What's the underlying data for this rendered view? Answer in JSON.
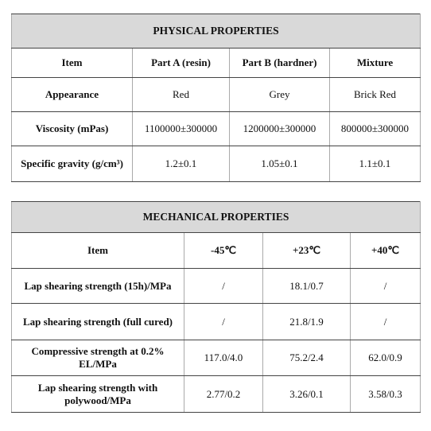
{
  "physical": {
    "title": "PHYSICAL PROPERTIES",
    "header": [
      "Item",
      "Part A (resin)",
      "Part B (hardner)",
      "Mixture"
    ],
    "rows": [
      [
        "Appearance",
        "Red",
        "Grey",
        "Brick Red"
      ],
      [
        "Viscosity (mPas)",
        "1100000±300000",
        "1200000±300000",
        "800000±300000"
      ],
      [
        "Specific gravity (g/cm³)",
        "1.2±0.1",
        "1.05±0.1",
        "1.1±0.1"
      ]
    ]
  },
  "mechanical": {
    "title": "MECHANICAL PROPERTIES",
    "header": [
      "Item",
      "-45℃",
      "+23℃",
      "+40℃"
    ],
    "rows": [
      [
        "Lap shearing strength (15h)/MPa",
        "/",
        "18.1/0.7",
        "/"
      ],
      [
        "Lap shearing strength (full cured)",
        "/",
        "21.8/1.9",
        "/"
      ],
      [
        "Compressive strength at 0.2% EL/MPa",
        "117.0/4.0",
        "75.2/2.4",
        "62.0/0.9"
      ],
      [
        "Lap shearing strength with polywood/MPa",
        "2.77/0.2",
        "3.26/0.1",
        "3.58/0.3"
      ]
    ]
  }
}
